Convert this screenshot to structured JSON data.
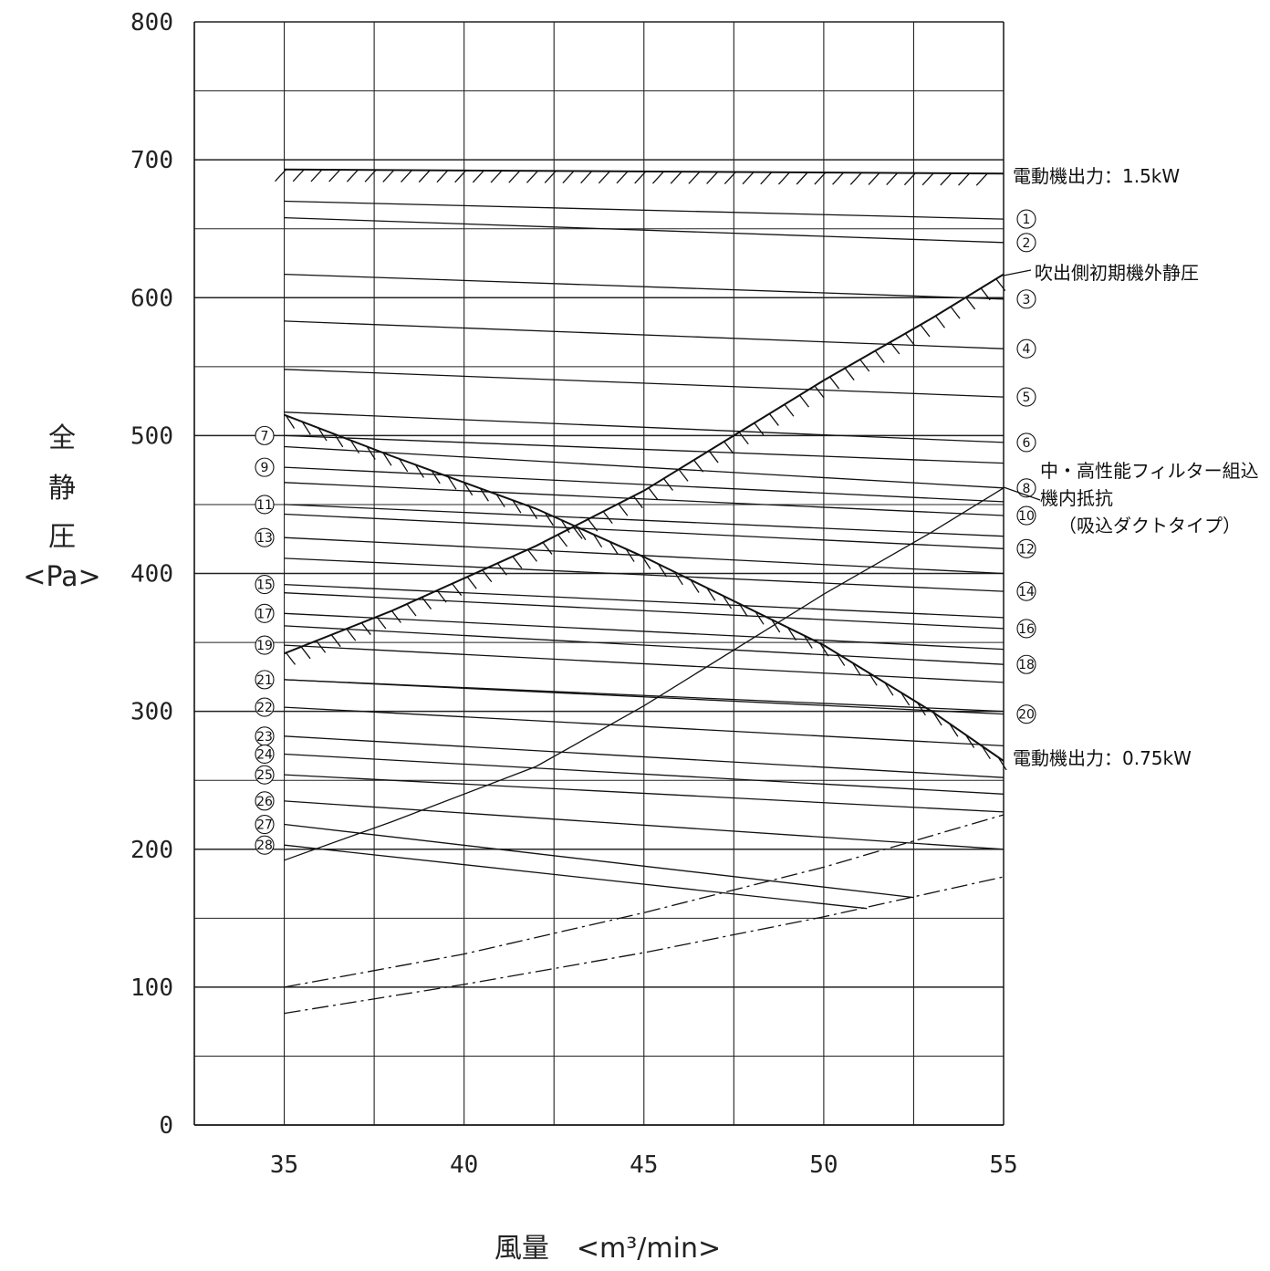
{
  "chart_data": {
    "type": "line",
    "title": "",
    "xlabel": "風量　<m³/min>",
    "ylabel": [
      "全",
      "静",
      "圧",
      "<Pa>"
    ],
    "xlim": [
      32.5,
      55
    ],
    "ylim": [
      0,
      800
    ],
    "x_ticks": [
      "35",
      "40",
      "45",
      "50",
      "55"
    ],
    "y_ticks": [
      "0",
      "100",
      "200",
      "300",
      "400",
      "500",
      "600",
      "700",
      "800"
    ],
    "grid": true,
    "series": [
      {
        "name": "①",
        "x": [
          35,
          55
        ],
        "y": [
          670,
          657
        ]
      },
      {
        "name": "②",
        "x": [
          35,
          55
        ],
        "y": [
          658,
          640
        ]
      },
      {
        "name": "③",
        "x": [
          35,
          55
        ],
        "y": [
          617,
          599
        ]
      },
      {
        "name": "④",
        "x": [
          35,
          55
        ],
        "y": [
          583,
          563
        ]
      },
      {
        "name": "⑤",
        "x": [
          35,
          55
        ],
        "y": [
          548,
          528
        ]
      },
      {
        "name": "⑥",
        "x": [
          35,
          55
        ],
        "y": [
          517,
          495
        ]
      },
      {
        "name": "⑦",
        "x": [
          35,
          55
        ],
        "y": [
          500,
          480
        ]
      },
      {
        "name": "⑧",
        "x": [
          35,
          55
        ],
        "y": [
          492,
          462
        ]
      },
      {
        "name": "⑨",
        "x": [
          35,
          55
        ],
        "y": [
          477,
          452
        ]
      },
      {
        "name": "⑩",
        "x": [
          35,
          55
        ],
        "y": [
          466,
          442
        ]
      },
      {
        "name": "⑪",
        "x": [
          35,
          55
        ],
        "y": [
          450,
          427
        ]
      },
      {
        "name": "⑫",
        "x": [
          35,
          55
        ],
        "y": [
          443,
          418
        ]
      },
      {
        "name": "⑬",
        "x": [
          35,
          55
        ],
        "y": [
          426,
          400
        ]
      },
      {
        "name": "⑭",
        "x": [
          35,
          55
        ],
        "y": [
          411,
          387
        ]
      },
      {
        "name": "⑮",
        "x": [
          35,
          55
        ],
        "y": [
          392,
          368
        ]
      },
      {
        "name": "⑯",
        "x": [
          35,
          55
        ],
        "y": [
          386,
          360
        ]
      },
      {
        "name": "⑰",
        "x": [
          35,
          55
        ],
        "y": [
          371,
          345
        ]
      },
      {
        "name": "⑱",
        "x": [
          35,
          55
        ],
        "y": [
          362,
          334
        ]
      },
      {
        "name": "⑲",
        "x": [
          35,
          55
        ],
        "y": [
          348,
          321
        ]
      },
      {
        "name": "⑳",
        "x": [
          35,
          55
        ],
        "y": [
          323,
          298
        ]
      },
      {
        "name": "㉑",
        "x": [
          35,
          55
        ],
        "y": [
          323,
          300
        ]
      },
      {
        "name": "㉒",
        "x": [
          35,
          55
        ],
        "y": [
          303,
          275
        ]
      },
      {
        "name": "㉓",
        "x": [
          35,
          55
        ],
        "y": [
          282,
          252
        ]
      },
      {
        "name": "㉔",
        "x": [
          35,
          55
        ],
        "y": [
          269,
          240
        ]
      },
      {
        "name": "㉕",
        "x": [
          35,
          55
        ],
        "y": [
          254,
          227
        ]
      },
      {
        "name": "㉖",
        "x": [
          35,
          55
        ],
        "y": [
          235,
          200
        ]
      },
      {
        "name": "㉗",
        "x": [
          35,
          52.5
        ],
        "y": [
          218,
          165
        ]
      },
      {
        "name": "㉘",
        "x": [
          35,
          51.2
        ],
        "y": [
          203,
          157
        ]
      },
      {
        "name": "電動機出力：1.5kW",
        "x": [
          35,
          55
        ],
        "y": [
          693,
          690
        ]
      },
      {
        "name": "電動機出力：0.75kW",
        "x": [
          35,
          38,
          42,
          45,
          50,
          53,
          55
        ],
        "y": [
          515,
          485,
          447,
          412,
          348,
          300,
          264
        ]
      },
      {
        "name": "吹出側初期機外静圧",
        "x": [
          35,
          38,
          42,
          45,
          50,
          53,
          55
        ],
        "y": [
          342,
          373,
          420,
          460,
          540,
          585,
          617
        ]
      },
      {
        "name": "中・高性能フィルター組込機内抵抗（吸込ダクトタイプ）",
        "x": [
          35,
          38,
          42,
          45,
          50,
          53,
          55
        ],
        "y": [
          192,
          220,
          260,
          304,
          385,
          430,
          462
        ]
      },
      {
        "name": "",
        "x": [
          35,
          40,
          45,
          50,
          55
        ],
        "y": [
          100,
          124,
          154,
          187,
          225
        ]
      },
      {
        "name": "",
        "x": [
          35,
          40,
          45,
          50,
          55
        ],
        "y": [
          81,
          102,
          125,
          151,
          180
        ]
      }
    ],
    "left_markers": [
      "⑦",
      "⑨",
      "⑪",
      "⑬",
      "⑮",
      "⑰",
      "⑲",
      "㉑",
      "㉒",
      "㉓",
      "㉔",
      "㉕",
      "㉖",
      "㉗",
      "㉘"
    ],
    "right_markers": [
      "①",
      "②",
      "③",
      "④",
      "⑤",
      "⑥",
      "⑧",
      "⑩",
      "⑫",
      "⑭",
      "⑯",
      "⑱",
      "⑳"
    ],
    "annotations": {
      "motor_high": "電動機出力：1.5kW",
      "motor_low": "電動機出力：0.75kW",
      "outlet": "吹出側初期機外静圧",
      "filter_1": "中・高性能フィルター組込",
      "filter_2": "機内抵抗",
      "filter_3": "（吸込ダクトタイプ）"
    }
  }
}
